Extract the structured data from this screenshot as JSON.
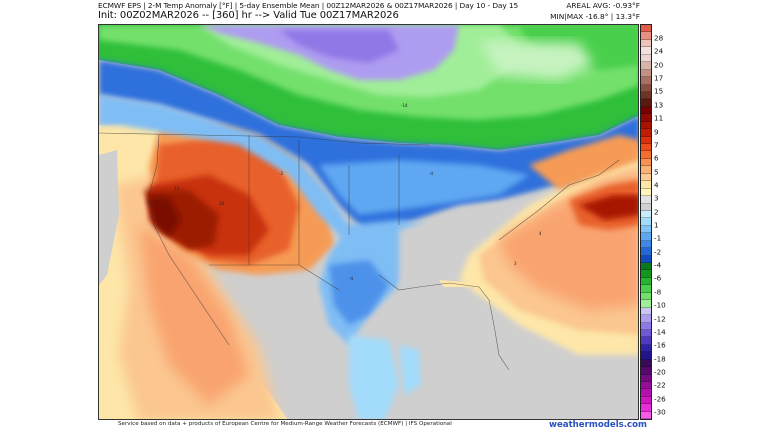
{
  "header": {
    "title_line": "ECMWF EPS | 2-M Temp Anomaly [°F] | 5-day Ensemble Mean | 00Z12MAR2026 & 00Z17MAR2026 | Day 10 - Day 15",
    "init_line": "Init: 00Z02MAR2026 -- [360] hr --> Valid Tue 00Z17MAR2026",
    "areal_avg": "AREAL AVG: -0.93°F",
    "min_max": "MIN|MAX -16.8° | 13.3°F"
  },
  "map": {
    "region": "North America (CONUS, Canada, Mexico, Caribbean)",
    "variable": "2-M Temp Anomaly",
    "units": "°F",
    "annotations": [
      {
        "label": "-14",
        "region": "Hudson Bay area"
      },
      {
        "label": "13",
        "region": "California/Nevada"
      },
      {
        "label": "-4",
        "region": "Texas"
      }
    ]
  },
  "legend": {
    "labels": [
      "28",
      "24",
      "20",
      "17",
      "15",
      "13",
      "11",
      "9",
      "7",
      "6",
      "5",
      "4",
      "3",
      "2",
      "1",
      "-1",
      "-2",
      "-4",
      "-6",
      "-8",
      "-10",
      "-12",
      "-14",
      "-16",
      "-18",
      "-20",
      "-22",
      "-26",
      "-30"
    ],
    "colors": [
      "#e25b4b",
      "#e99083",
      "#f0c3ba",
      "#f5e2df",
      "#ecd6d1",
      "#d9b3a8",
      "#c29184",
      "#a87062",
      "#8b4f41",
      "#6e3527",
      "#5a1a10",
      "#7a0000",
      "#8f0a00",
      "#a81400",
      "#c01e04",
      "#d8320c",
      "#ec4d18",
      "#f46f2e",
      "#f99150",
      "#fbb174",
      "#fdcc92",
      "#fde6a8",
      "#fff5bc",
      "#e2e2e2",
      "#d0d0d0",
      "#c7ecfb",
      "#a3dbfb",
      "#80c3f7",
      "#5ea7f2",
      "#3f87e8",
      "#2567d6",
      "#134cc0",
      "#0b7a1c",
      "#13981f",
      "#27b52e",
      "#48cf4b",
      "#73e06c",
      "#a0ee98",
      "#cac4f7",
      "#ae9cf1",
      "#9078e6",
      "#6f58d6",
      "#4d3ac0",
      "#2f22a4",
      "#22158a",
      "#3a0a5a",
      "#55096c",
      "#750b83",
      "#960d9a",
      "#b40faf",
      "#cf16c3",
      "#e62dd8",
      "#f55de8"
    ],
    "min_label": "-30",
    "max_label": "28"
  },
  "footer": {
    "credit": "Service based on data + products of European Centre for Medium-Range Weather Forecasts (ECMWF) | IFS Operational",
    "brand": "weathermodels.com"
  },
  "colors": {
    "land_neutral": "#cfcfcf",
    "warm_ocean": "#f8b27a",
    "warm_core": "#9c1a06",
    "cold_blue": "#2f6fdc",
    "cold_green": "#2fbf3a",
    "cold_purple": "#a992ee",
    "brand_link": "#2a52be"
  }
}
